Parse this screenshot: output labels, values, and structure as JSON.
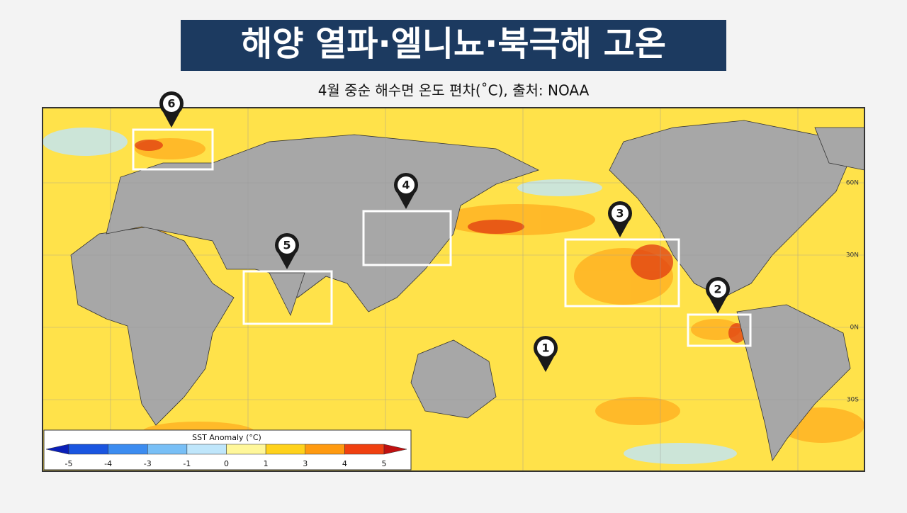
{
  "header": {
    "title": "해양 열파·엘니뇨·북극해 고온",
    "subtitle": "4월 중순 해수면 온도 편차(˚C), 출처: NOAA"
  },
  "map": {
    "lat_labels": [
      "60N",
      "30N",
      "0N",
      "30S"
    ],
    "markers": [
      {
        "label": "1"
      },
      {
        "label": "2"
      },
      {
        "label": "3"
      },
      {
        "label": "4"
      },
      {
        "label": "5"
      },
      {
        "label": "6"
      }
    ]
  },
  "legend": {
    "title": "SST Anomaly (°C)",
    "ticks": [
      "-5",
      "-4",
      "-3",
      "-1",
      "0",
      "1",
      "3",
      "4",
      "5"
    ],
    "colors": [
      "#0a1fb8",
      "#1a55e0",
      "#3c8cf0",
      "#78bff6",
      "#bfe6fb",
      "#fff79a",
      "#ffd21c",
      "#ff9a10",
      "#f04010",
      "#c01010"
    ]
  }
}
